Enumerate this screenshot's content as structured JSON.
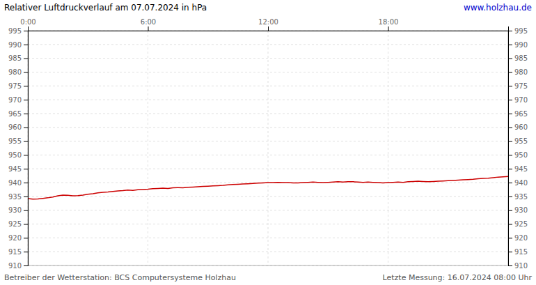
{
  "chart_data": {
    "type": "line",
    "title": "Relativer Luftdruckverlauf am 07.07.2024 in hPa",
    "annotations": [
      "www.holzhau.de",
      "Betreiber der Wetterstation: BCS Computersysteme Holzhau",
      "Letzte Messung: 16.07.2024 08:00 Uhr"
    ],
    "color": "#cc0000",
    "grid": true,
    "xlim": [
      0,
      24
    ],
    "xticks": [
      {
        "value": 0,
        "label": "0:00"
      },
      {
        "value": 6,
        "label": "6:00"
      },
      {
        "value": 12,
        "label": "12:00"
      },
      {
        "value": 18,
        "label": "18:00"
      }
    ],
    "ylim": [
      910,
      995
    ],
    "yticks": [
      910,
      915,
      920,
      925,
      930,
      935,
      940,
      945,
      950,
      955,
      960,
      965,
      970,
      975,
      980,
      985,
      990,
      995
    ],
    "y2lim": [
      910,
      995
    ],
    "y2ticks": [
      910,
      915,
      920,
      925,
      930,
      935,
      940,
      945,
      950,
      955,
      960,
      965,
      970,
      975,
      980,
      985,
      990,
      995
    ],
    "x": [
      0.0,
      0.25,
      0.5,
      0.75,
      1.0,
      1.25,
      1.5,
      1.75,
      2.0,
      2.25,
      2.5,
      2.75,
      3.0,
      3.25,
      3.5,
      3.75,
      4.0,
      4.25,
      4.5,
      4.75,
      5.0,
      5.25,
      5.5,
      5.75,
      6.0,
      6.25,
      6.5,
      6.75,
      7.0,
      7.25,
      7.5,
      7.75,
      8.0,
      8.25,
      8.5,
      8.75,
      9.0,
      9.25,
      9.5,
      9.75,
      10.0,
      10.25,
      10.5,
      10.75,
      11.0,
      11.25,
      11.5,
      11.75,
      12.0,
      12.25,
      12.5,
      12.75,
      13.0,
      13.25,
      13.5,
      13.75,
      14.0,
      14.25,
      14.5,
      14.75,
      15.0,
      15.25,
      15.5,
      15.75,
      16.0,
      16.25,
      16.5,
      16.75,
      17.0,
      17.25,
      17.5,
      17.75,
      18.0,
      18.25,
      18.5,
      18.75,
      19.0,
      19.25,
      19.5,
      19.75,
      20.0,
      20.25,
      20.5,
      20.75,
      21.0,
      21.25,
      21.5,
      21.75,
      22.0,
      22.25,
      22.5,
      22.75,
      23.0,
      23.25,
      23.5,
      23.75,
      24.0
    ],
    "values": [
      934.2,
      934.0,
      934.1,
      934.3,
      934.5,
      934.8,
      935.2,
      935.5,
      935.4,
      935.2,
      935.3,
      935.5,
      935.8,
      936.0,
      936.3,
      936.5,
      936.6,
      936.8,
      937.0,
      937.1,
      937.3,
      937.2,
      937.4,
      937.5,
      937.6,
      937.8,
      937.9,
      938.0,
      937.9,
      938.1,
      938.2,
      938.1,
      938.3,
      938.4,
      938.5,
      938.6,
      938.7,
      938.8,
      938.9,
      939.0,
      939.2,
      939.3,
      939.4,
      939.5,
      939.6,
      939.7,
      939.8,
      939.9,
      940.0,
      940.0,
      940.1,
      940.0,
      940.0,
      939.9,
      939.9,
      940.0,
      940.1,
      940.2,
      940.1,
      940.0,
      940.1,
      940.2,
      940.3,
      940.2,
      940.3,
      940.3,
      940.2,
      940.1,
      940.2,
      940.1,
      940.0,
      939.9,
      940.0,
      940.1,
      940.2,
      940.1,
      940.3,
      940.4,
      940.5,
      940.4,
      940.3,
      940.4,
      940.5,
      940.6,
      940.7,
      940.8,
      940.9,
      941.0,
      941.1,
      941.2,
      941.4,
      941.5,
      941.6,
      941.8,
      942.0,
      942.1,
      942.2
    ]
  }
}
